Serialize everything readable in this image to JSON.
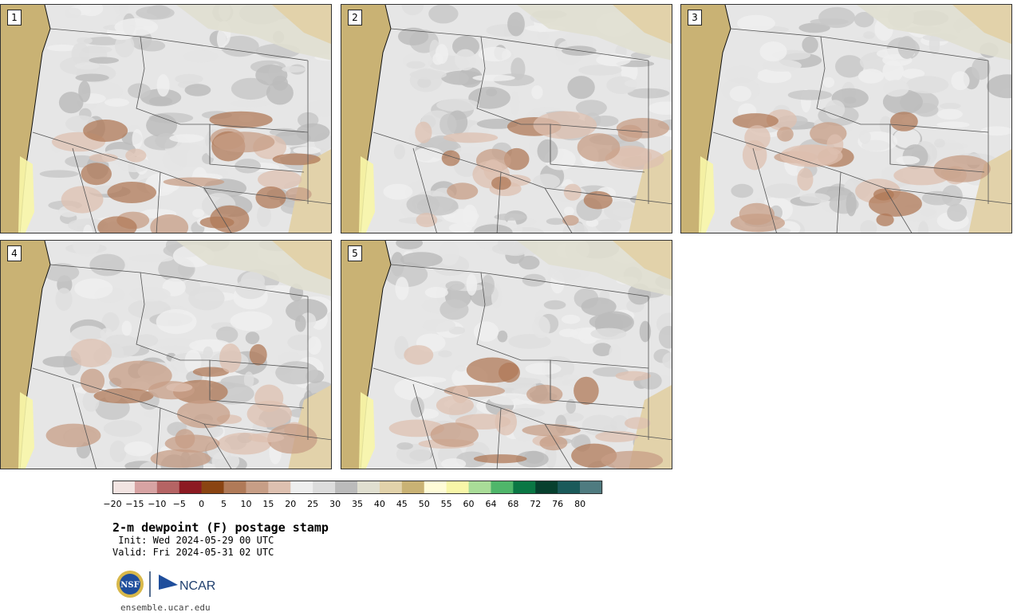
{
  "title": "2-m dewpoint (F) postage stamp",
  "init": " Init: Wed 2024-05-29 00 UTC",
  "valid": "Valid: Fri 2024-05-31 02 UTC",
  "url": "ensemble.ucar.edu",
  "logo": {
    "nsf": "NSF",
    "ncar": "NCAR"
  },
  "panels": [
    {
      "label": "1"
    },
    {
      "label": "2"
    },
    {
      "label": "3"
    },
    {
      "label": "4"
    },
    {
      "label": "5"
    }
  ],
  "colorbar": {
    "colors": [
      "#f2e4e2",
      "#d7a3a3",
      "#b56464",
      "#8c1a22",
      "#8a4412",
      "#b07a58",
      "#c79e86",
      "#ddc0b0",
      "#eeeeee",
      "#dcdcdc",
      "#bbbbbb",
      "#e0dfd0",
      "#e2d2aa",
      "#c9b274",
      "#fffcd8",
      "#f8f6a8",
      "#a9dc98",
      "#4fb66a",
      "#0a7744",
      "#07402e",
      "#1a5a5a",
      "#4f7b80"
    ],
    "tick_labels": [
      "−20",
      "−15",
      "−10",
      "−5",
      "0",
      "5",
      "10",
      "15",
      "20",
      "25",
      "30",
      "35",
      "40",
      "45",
      "50",
      "55",
      "60",
      "64",
      "68",
      "72",
      "76",
      "80"
    ]
  }
}
